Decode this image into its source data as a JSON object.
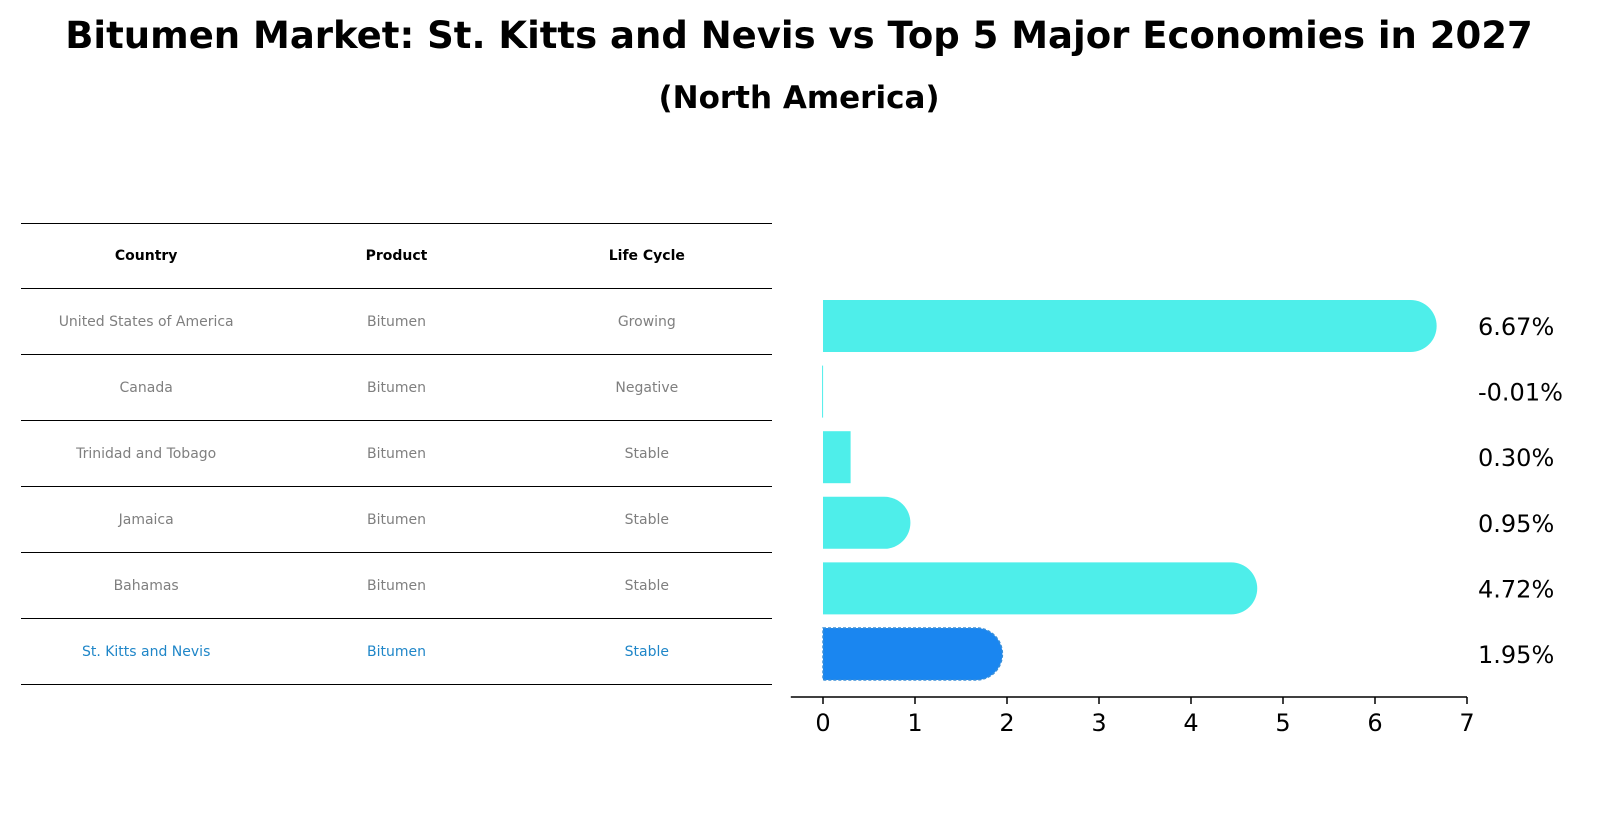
{
  "title": "Bitumen Market: St. Kitts and Nevis vs Top 5 Major Economies in 2027",
  "subtitle": "(North America)",
  "table": {
    "headers": [
      "Country",
      "Product",
      "Life Cycle"
    ],
    "rows": [
      [
        "United States of America",
        "Bitumen",
        "Growing"
      ],
      [
        "Canada",
        "Bitumen",
        "Negative"
      ],
      [
        "Trinidad and Tobago",
        "Bitumen",
        "Stable"
      ],
      [
        "Jamaica",
        "Bitumen",
        "Stable"
      ],
      [
        "Bahamas",
        "Bitumen",
        "Stable"
      ],
      [
        "St. Kitts and Nevis",
        "Bitumen",
        "Stable"
      ]
    ]
  },
  "chart_data": {
    "type": "bar",
    "orientation": "horizontal",
    "title": "Bitumen Market: St. Kitts and Nevis vs Top 5 Major Economies in 2027",
    "subtitle": "(North America)",
    "categories": [
      "United States of America",
      "Canada",
      "Trinidad and Tobago",
      "Jamaica",
      "Bahamas",
      "St. Kitts and Nevis"
    ],
    "values": [
      6.67,
      -0.01,
      0.3,
      0.95,
      4.72,
      1.95
    ],
    "labels": [
      "6.67%",
      "-0.01%",
      "0.30%",
      "0.95%",
      "4.72%",
      "1.95%"
    ],
    "highlight_index": 5,
    "xlim": [
      -0.35,
      7
    ],
    "xticks": [
      0,
      1,
      2,
      3,
      4,
      5,
      6,
      7
    ],
    "xlabel": "",
    "ylabel": "",
    "grid": false,
    "colors": {
      "default": "#4eeeea",
      "highlight": "#1a86f0"
    }
  }
}
